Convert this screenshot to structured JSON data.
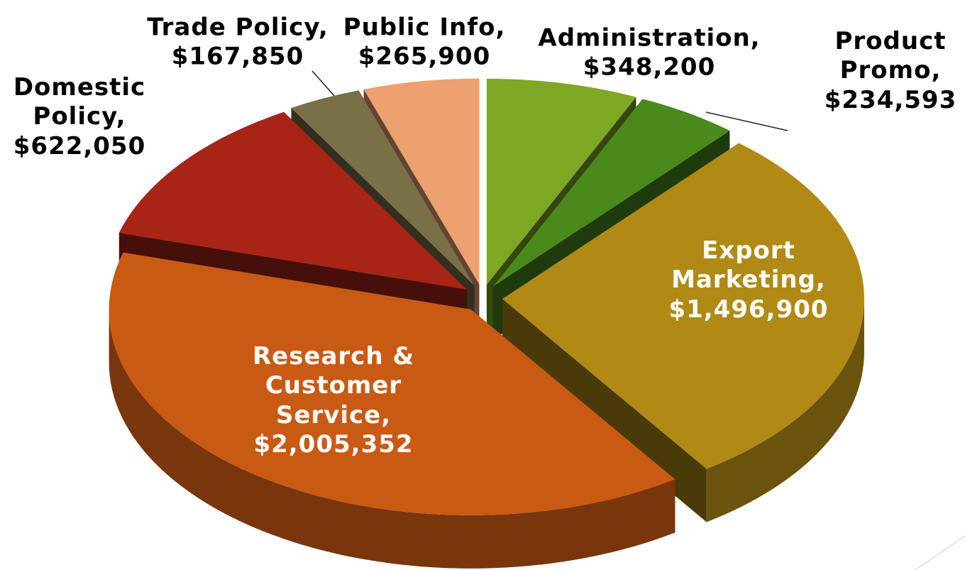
{
  "chart_data": {
    "type": "pie3d",
    "categories": [
      "Administration,",
      "Product Promo,",
      "Export Marketing,",
      "Research & Customer Service,",
      "Domestic Policy,",
      "Trade Policy,",
      "Public Info,"
    ],
    "values": [
      348200,
      234593,
      1496900,
      2005352,
      622050,
      167850,
      265900
    ],
    "value_labels": [
      "$348,200",
      "$234,593",
      "$1,496,900",
      "$2,005,352",
      "$622,050",
      "$167,850",
      "$265,900"
    ],
    "colors": [
      "#7ea723",
      "#4a8a1c",
      "#b08a15",
      "#c95a14",
      "#a82416",
      "#7a7048",
      "#eda070"
    ]
  }
}
